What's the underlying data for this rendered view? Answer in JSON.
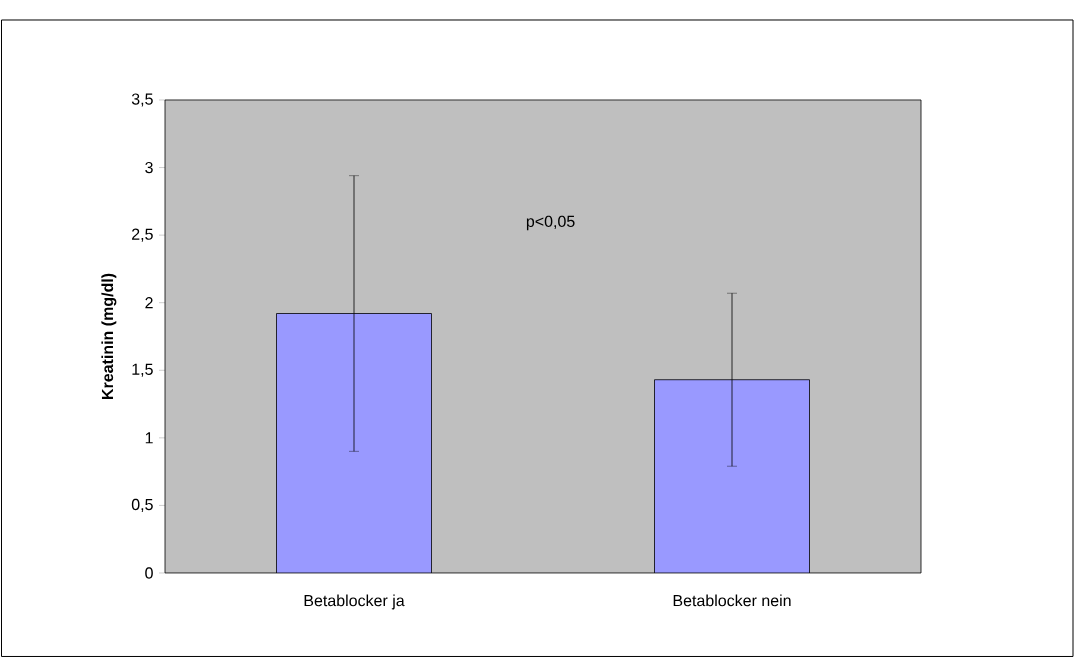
{
  "chart_data": {
    "type": "bar",
    "categories": [
      "Betablocker ja",
      "Betablocker nein"
    ],
    "values": [
      1.92,
      1.43
    ],
    "errors": [
      1.02,
      0.64
    ],
    "color": "#9999ff",
    "ylabel": "Kreatinin (mg/dl)",
    "ylim": [
      0,
      3.5
    ],
    "yticks": [
      0,
      {
        "value": 0.5,
        "label": "0,5"
      },
      1,
      {
        "value": 1.5,
        "label": "1,5"
      },
      2,
      {
        "value": 2.5,
        "label": "2,5"
      },
      3,
      {
        "value": 3.5,
        "label": "3,5"
      }
    ],
    "annotations": [
      "p<0,05"
    ]
  }
}
